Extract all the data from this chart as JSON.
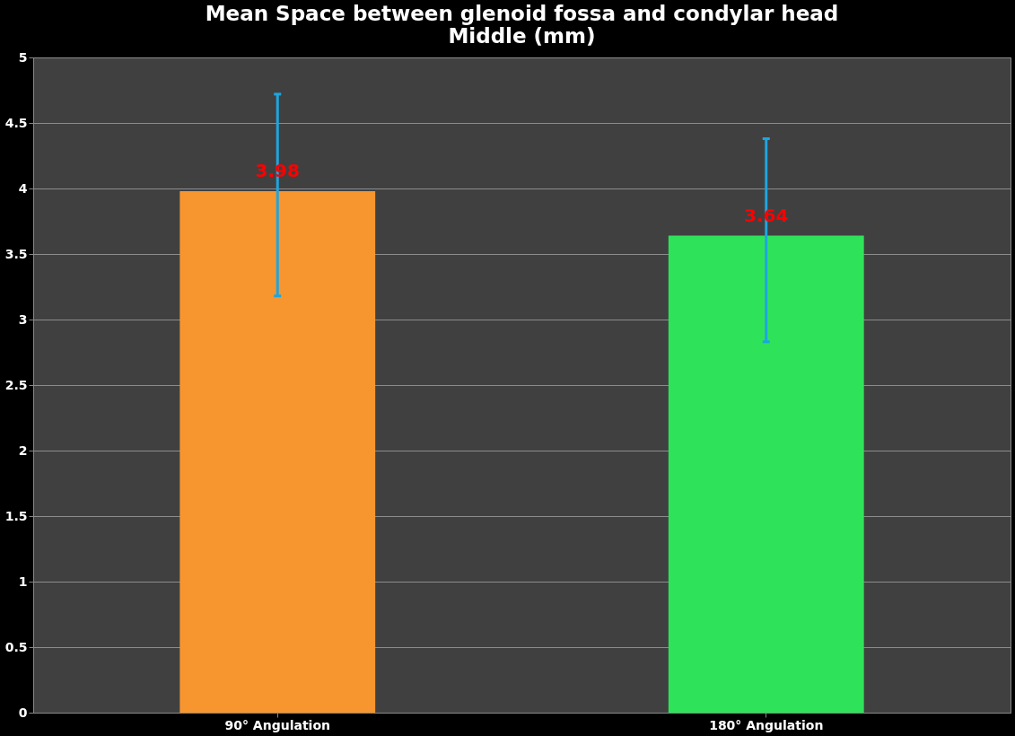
{
  "chart_data": {
    "type": "bar",
    "title": "Mean  Space between glenoid fossa and condylar head\nMiddle (mm)",
    "categories": [
      "90° Angulation",
      "180° Angulation"
    ],
    "values": [
      3.98,
      3.64
    ],
    "colors": [
      "#f7962e",
      "#2ee35a"
    ],
    "errors": [
      [
        3.18,
        4.72
      ],
      [
        2.83,
        4.38
      ]
    ],
    "data_labels": true,
    "ylim": [
      0,
      5
    ],
    "yticks": [
      0,
      0.5,
      1,
      1.5,
      2,
      2.5,
      3,
      3.5,
      4,
      4.5,
      5
    ],
    "grid": "y"
  }
}
